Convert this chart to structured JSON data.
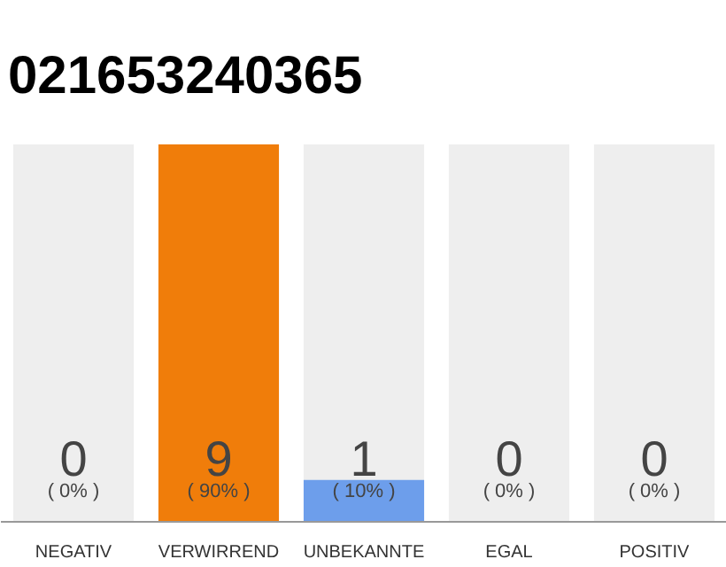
{
  "chart_data": {
    "type": "bar",
    "title": "021653240365",
    "categories": [
      "NEGATIV",
      "VERWIRREND",
      "UNBEKANNTE",
      "EGAL",
      "POSITIV"
    ],
    "values": [
      0,
      9,
      1,
      0,
      0
    ],
    "colors": [
      "#f07d0a",
      "#f07d0a",
      "#6d9eeb",
      "#6d9eeb",
      "#6d9eeb"
    ],
    "data_labels": true,
    "annotations": [
      {
        "text": "( 0% )",
        "x": "NEGATIV",
        "y": 0
      },
      {
        "text": "( 90% )",
        "x": "VERWIRREND",
        "y": 0
      },
      {
        "text": "( 10% )",
        "x": "UNBEKANNTE",
        "y": 0
      },
      {
        "text": "( 0% )",
        "x": "EGAL",
        "y": 0
      },
      {
        "text": "( 0% )",
        "x": "POSITIV",
        "y": 0
      }
    ],
    "bands": [
      {
        "axis": "x",
        "from": "NEGATIV",
        "to": "NEGATIV",
        "color": "#eeeeee"
      },
      {
        "axis": "x",
        "from": "UNBEKANNTE",
        "to": "UNBEKANNTE",
        "color": "#eeeeee"
      },
      {
        "axis": "x",
        "from": "EGAL",
        "to": "EGAL",
        "color": "#eeeeee"
      },
      {
        "axis": "x",
        "from": "POSITIV",
        "to": "POSITIV",
        "color": "#eeeeee"
      }
    ],
    "grid": false
  }
}
